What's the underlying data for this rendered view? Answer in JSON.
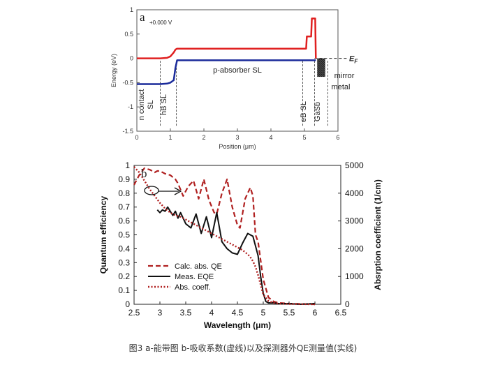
{
  "caption": "图3 a-能带图 b-吸收系数(虚线)以及探测器外QE测量值(实线)",
  "chart_data": [
    {
      "type": "line",
      "panel_label": "a",
      "annotation_bias": "+0.000 V",
      "xlabel": "Position (μm)",
      "ylabel": "Energy (eV)",
      "xlim": [
        0,
        6
      ],
      "ylim": [
        -1.5,
        1
      ],
      "x_ticks": [
        0,
        1,
        2,
        3,
        4,
        5,
        6
      ],
      "y_ticks": [
        1,
        0.5,
        0,
        -0.5,
        -1,
        -1.5
      ],
      "x_tick_labels": [
        "0",
        "1",
        "2",
        "3",
        "4",
        "5",
        "6"
      ],
      "y_tick_labels": [
        "1",
        "0.5",
        "0",
        "-0.5",
        "-1",
        "-1.5"
      ],
      "grid": false,
      "series": [
        {
          "color": "#e02020",
          "x": [
            0,
            0.7,
            0.9,
            1.0,
            1.1,
            1.15,
            1.2,
            1.3,
            2.0,
            3.0,
            4.0,
            5.0,
            5.05,
            5.07,
            5.09,
            5.1,
            5.2,
            5.22,
            5.25,
            5.3,
            5.32,
            5.34
          ],
          "y": [
            0,
            0,
            0.01,
            0.04,
            0.12,
            0.18,
            0.2,
            0.2,
            0.2,
            0.2,
            0.2,
            0.2,
            0.2,
            0.45,
            0.45,
            0.45,
            0.45,
            0.82,
            0.82,
            0.82,
            0.82,
            0
          ]
        },
        {
          "color": "#1a2a9a",
          "x": [
            0,
            0.7,
            0.9,
            1.0,
            1.1,
            1.15,
            1.2,
            1.3,
            2.0,
            3.0,
            4.0,
            5.0,
            5.2,
            5.3,
            5.34
          ],
          "y": [
            -0.53,
            -0.53,
            -0.52,
            -0.5,
            -0.45,
            -0.2,
            -0.04,
            -0.04,
            -0.04,
            -0.04,
            -0.04,
            -0.04,
            -0.04,
            -0.04,
            -0.04
          ]
        }
      ],
      "fermi_level": {
        "y": 0,
        "label_main": "E",
        "label_sub": "F"
      },
      "region_labels": [
        "n contact",
        "SL",
        "hB SL",
        "p-absorber SL",
        "eB SL",
        "GaSb",
        "mirror",
        "metal"
      ]
    },
    {
      "type": "line",
      "panel_label": "b",
      "xlabel": "Wavelength (μm)",
      "ylabel": "Quantum efficiency",
      "ylabel_right": "Absrption coefficient (1/cm)",
      "xlim": [
        2.5,
        6.5
      ],
      "ylim": [
        0,
        1
      ],
      "ylim_right": [
        0,
        5000
      ],
      "x_ticks": [
        2.5,
        3,
        3.5,
        4,
        4.5,
        5,
        5.5,
        6,
        6.5
      ],
      "y_ticks": [
        0,
        0.1,
        0.2,
        0.3,
        0.4,
        0.5,
        0.6,
        0.7,
        0.8,
        0.9,
        1
      ],
      "y_ticks_right": [
        0,
        1000,
        2000,
        3000,
        4000,
        5000
      ],
      "x_tick_labels": [
        "2.5",
        "3",
        "3.5",
        "4",
        "4.5",
        "5",
        "5.5",
        "6",
        "6.5"
      ],
      "y_tick_labels": [
        "0",
        "0.1",
        "0.2",
        "0.3",
        "0.4",
        "0.5",
        "0.6",
        "0.7",
        "0.8",
        "0.9",
        "1"
      ],
      "y_tick_labels_right": [
        "0",
        "1000",
        "2000",
        "3000",
        "4000",
        "5000"
      ],
      "grid": false,
      "legend_position": "bottom-left",
      "series": [
        {
          "name": "Calc. abs. QE",
          "color": "#b02020",
          "style": "dashed",
          "x": [
            2.5,
            2.6,
            2.7,
            2.8,
            2.9,
            2.95,
            3.0,
            3.1,
            3.2,
            3.3,
            3.35,
            3.45,
            3.55,
            3.65,
            3.75,
            3.85,
            3.95,
            4.05,
            4.1,
            4.2,
            4.3,
            4.4,
            4.5,
            4.55,
            4.65,
            4.75,
            4.8,
            4.85,
            4.9,
            5.0,
            5.1,
            5.2,
            5.3,
            5.5,
            6.0
          ],
          "y": [
            0.86,
            0.93,
            0.98,
            0.97,
            0.95,
            0.96,
            0.96,
            0.94,
            0.93,
            0.9,
            0.87,
            0.78,
            0.85,
            0.89,
            0.76,
            0.9,
            0.75,
            0.66,
            0.65,
            0.8,
            0.9,
            0.7,
            0.57,
            0.55,
            0.76,
            0.84,
            0.78,
            0.5,
            0.45,
            0.18,
            0.05,
            0.02,
            0.01,
            0.005,
            0
          ]
        },
        {
          "name": "Meas. EQE",
          "color": "#111111",
          "style": "solid",
          "x": [
            2.95,
            3.0,
            3.05,
            3.1,
            3.15,
            3.2,
            3.25,
            3.3,
            3.35,
            3.4,
            3.5,
            3.6,
            3.7,
            3.8,
            3.9,
            4.0,
            4.1,
            4.2,
            4.3,
            4.4,
            4.5,
            4.6,
            4.7,
            4.8,
            4.85,
            4.9,
            4.95,
            5.0,
            5.05,
            5.1,
            5.2,
            5.3,
            5.5,
            5.7,
            6.0
          ],
          "y": [
            0.68,
            0.66,
            0.68,
            0.67,
            0.7,
            0.67,
            0.64,
            0.67,
            0.62,
            0.66,
            0.58,
            0.55,
            0.65,
            0.51,
            0.63,
            0.48,
            0.66,
            0.45,
            0.4,
            0.37,
            0.36,
            0.44,
            0.51,
            0.49,
            0.42,
            0.35,
            0.2,
            0.08,
            0.02,
            0.01,
            0.01,
            0.005,
            0.005,
            0,
            0.005
          ]
        },
        {
          "name": "Abs. coeff.",
          "color": "#b02020",
          "style": "dotted",
          "axis": "right",
          "x": [
            2.5,
            2.6,
            2.7,
            2.8,
            2.9,
            3.0,
            3.1,
            3.2,
            3.3,
            3.4,
            3.5,
            3.7,
            3.9,
            4.1,
            4.3,
            4.5,
            4.6,
            4.7,
            4.75,
            4.8,
            4.85,
            4.9,
            4.95,
            5.0,
            5.1,
            5.2,
            5.3,
            5.5,
            6.0
          ],
          "y": [
            4950,
            4750,
            4450,
            4150,
            3900,
            3650,
            3450,
            3300,
            3200,
            3150,
            3050,
            2850,
            2650,
            2450,
            2250,
            2050,
            1950,
            1800,
            1700,
            1550,
            1350,
            1050,
            700,
            350,
            120,
            50,
            20,
            10,
            0
          ]
        }
      ],
      "arrow_annotation": "points to right axis"
    }
  ]
}
